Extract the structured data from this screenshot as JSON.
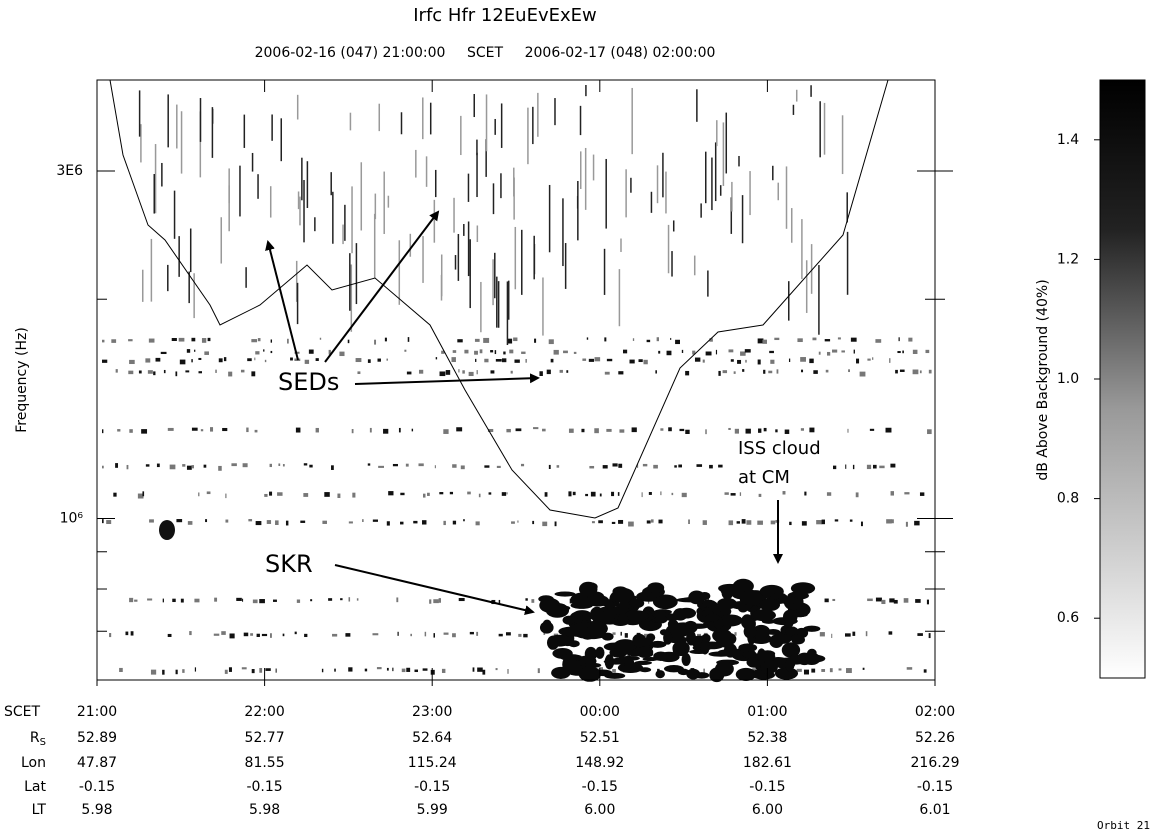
{
  "chart_data": {
    "type": "spectrogram",
    "title": "Irfc Hfr 12EuEvExEw",
    "top_left": "2006-02-16 (047) 21:00:00",
    "top_mid": "SCET",
    "top_right": "2006-02-17 (048) 02:00:00",
    "ylabel": "Frequency (Hz)",
    "log_y": true,
    "ylim": [
      600000,
      4000000
    ],
    "yticks": [
      {
        "value": 3000000,
        "label": "3E6"
      },
      {
        "value": 1000000,
        "label": "10⁶"
      }
    ],
    "yminor": [
      2000000,
      900000,
      800000,
      700000
    ],
    "categories": [
      "21:00",
      "22:00",
      "23:00",
      "00:00",
      "01:00",
      "02:00"
    ],
    "colorbar": {
      "label": "dB Above Background (40%)",
      "clim": [
        0.5,
        1.5
      ],
      "ticks": [
        0.6,
        0.8,
        1.0,
        1.2,
        1.4
      ],
      "ticklabels": [
        "0.6",
        "0.8",
        "1.0",
        "1.2",
        "1.4"
      ]
    },
    "annotations": [
      "SEDs",
      "SKR",
      "ISS cloud",
      "at CM"
    ],
    "ephemeris": {
      "row_label": "SCET",
      "rows": [
        {
          "label": "R",
          "label_sub": "S",
          "values": [
            "52.89",
            "52.77",
            "52.64",
            "52.51",
            "52.38",
            "52.26"
          ]
        },
        {
          "label": "Lon",
          "values": [
            "47.87",
            "81.55",
            "115.24",
            "148.92",
            "182.61",
            "216.29"
          ]
        },
        {
          "label": "Lat",
          "values": [
            "-0.15",
            "-0.15",
            "-0.15",
            "-0.15",
            "-0.15",
            "-0.15"
          ]
        },
        {
          "label": "LT",
          "values": [
            "5.98",
            "5.98",
            "5.99",
            "6.00",
            "6.00",
            "6.01"
          ]
        }
      ]
    },
    "footer": "Orbit 21"
  }
}
